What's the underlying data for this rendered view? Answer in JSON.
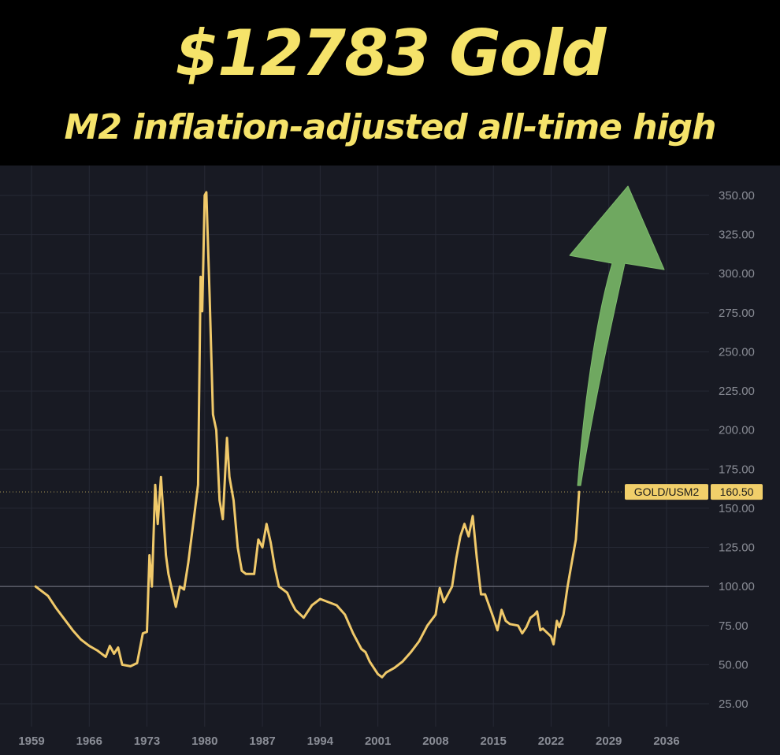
{
  "header": {
    "title": "$12783 Gold",
    "subtitle": "M2 inflation-adjusted all-time high"
  },
  "colors": {
    "accent_text": "#f5e36a",
    "line": "#f0c96a",
    "arrow": "#6fa860",
    "grid": "#262935",
    "background": "#181a23"
  },
  "chart_data": {
    "type": "line",
    "series": [
      {
        "name": "GOLD/USM2",
        "points": [
          [
            1959.5,
            100
          ],
          [
            1961,
            94
          ],
          [
            1962,
            86
          ],
          [
            1963,
            79
          ],
          [
            1964,
            72
          ],
          [
            1965,
            66
          ],
          [
            1966,
            62
          ],
          [
            1967,
            59
          ],
          [
            1968,
            55
          ],
          [
            1968.5,
            62
          ],
          [
            1969,
            57
          ],
          [
            1969.5,
            61
          ],
          [
            1970,
            50
          ],
          [
            1971,
            49
          ],
          [
            1971.8,
            51
          ],
          [
            1972.5,
            70
          ],
          [
            1973,
            71
          ],
          [
            1973.3,
            120
          ],
          [
            1973.6,
            100
          ],
          [
            1974,
            165
          ],
          [
            1974.3,
            140
          ],
          [
            1974.7,
            170
          ],
          [
            1975.3,
            120
          ],
          [
            1975.6,
            108
          ],
          [
            1976.5,
            87
          ],
          [
            1977,
            100
          ],
          [
            1977.5,
            98
          ],
          [
            1978,
            115
          ],
          [
            1978.6,
            140
          ],
          [
            1979.2,
            165
          ],
          [
            1979.5,
            298
          ],
          [
            1979.7,
            276
          ],
          [
            1980.0,
            350
          ],
          [
            1980.2,
            352
          ],
          [
            1980.6,
            285
          ],
          [
            1981,
            210
          ],
          [
            1981.4,
            200
          ],
          [
            1981.8,
            155
          ],
          [
            1982.2,
            143
          ],
          [
            1982.7,
            195
          ],
          [
            1983,
            170
          ],
          [
            1983.5,
            155
          ],
          [
            1984,
            125
          ],
          [
            1984.5,
            110
          ],
          [
            1985,
            108
          ],
          [
            1986,
            108
          ],
          [
            1986.5,
            130
          ],
          [
            1987,
            125
          ],
          [
            1987.5,
            140
          ],
          [
            1988,
            128
          ],
          [
            1988.5,
            112
          ],
          [
            1989,
            100
          ],
          [
            1990,
            96
          ],
          [
            1990.5,
            90
          ],
          [
            1991,
            85
          ],
          [
            1992,
            80
          ],
          [
            1993,
            88
          ],
          [
            1994,
            92
          ],
          [
            1995,
            90
          ],
          [
            1996,
            88
          ],
          [
            1997,
            82
          ],
          [
            1998,
            70
          ],
          [
            1999,
            60
          ],
          [
            1999.5,
            58
          ],
          [
            2000,
            52
          ],
          [
            2001,
            44
          ],
          [
            2001.5,
            42
          ],
          [
            2002,
            45
          ],
          [
            2003,
            48
          ],
          [
            2004,
            52
          ],
          [
            2005,
            58
          ],
          [
            2006,
            65
          ],
          [
            2007,
            75
          ],
          [
            2008,
            82
          ],
          [
            2008.5,
            99
          ],
          [
            2009,
            90
          ],
          [
            2010,
            100
          ],
          [
            2010.5,
            118
          ],
          [
            2011,
            132
          ],
          [
            2011.5,
            140
          ],
          [
            2012,
            132
          ],
          [
            2012.5,
            145
          ],
          [
            2013,
            118
          ],
          [
            2013.5,
            95
          ],
          [
            2014,
            95
          ],
          [
            2015,
            80
          ],
          [
            2015.5,
            72
          ],
          [
            2016,
            85
          ],
          [
            2016.5,
            78
          ],
          [
            2017,
            76
          ],
          [
            2018,
            75
          ],
          [
            2018.5,
            70
          ],
          [
            2019,
            74
          ],
          [
            2019.5,
            80
          ],
          [
            2020,
            82
          ],
          [
            2020.3,
            84
          ],
          [
            2020.7,
            72
          ],
          [
            2021,
            73
          ],
          [
            2022,
            68
          ],
          [
            2022.3,
            63
          ],
          [
            2022.7,
            78
          ],
          [
            2023,
            74
          ],
          [
            2023.5,
            82
          ],
          [
            2024,
            100
          ],
          [
            2024.5,
            115
          ],
          [
            2025.0,
            130
          ],
          [
            2025.4,
            160.5
          ]
        ]
      }
    ],
    "xlim": [
      1958,
      2040
    ],
    "ylim": [
      14,
      365
    ],
    "xticks": [
      "1959",
      "1966",
      "1973",
      "1980",
      "1987",
      "1994",
      "2001",
      "2008",
      "2015",
      "2022",
      "2029",
      "2036"
    ],
    "yticks": [
      "25.00",
      "50.00",
      "75.00",
      "100.00",
      "125.00",
      "150.00",
      "175.00",
      "200.00",
      "225.00",
      "250.00",
      "275.00",
      "300.00",
      "325.00",
      "350.00"
    ],
    "reference_line": 100,
    "last_value": {
      "series_label": "GOLD/USM2",
      "value": "160.50"
    },
    "annotation": "upward arrow"
  }
}
